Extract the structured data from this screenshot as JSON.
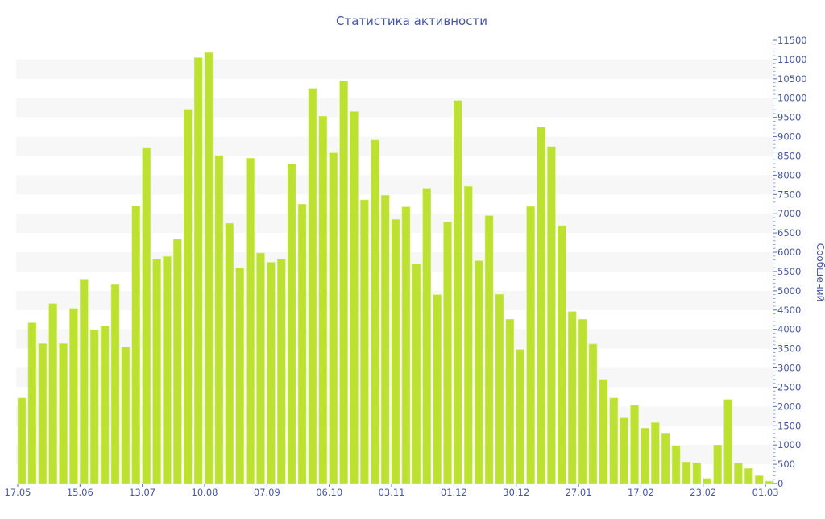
{
  "chart_data": {
    "type": "bar",
    "title": "Статистика активности",
    "xlabel": "",
    "ylabel": "Сообщений",
    "ylim": [
      0,
      11500
    ],
    "y_tick_step": 500,
    "y_axis_side": "right",
    "grid": "alternating horizontal bands",
    "legend": "none",
    "x_tick_labels": [
      "17.05",
      "15.06",
      "13.07",
      "10.08",
      "07.09",
      "06.10",
      "03.11",
      "01.12",
      "30.12",
      "27.01",
      "17.02",
      "23.02",
      "01.03"
    ],
    "x_tick_every": 6,
    "values": [
      2220,
      4170,
      3630,
      4670,
      3630,
      4540,
      5300,
      3980,
      4090,
      5160,
      3540,
      7200,
      8700,
      5820,
      5890,
      6350,
      9710,
      11050,
      11180,
      8510,
      6750,
      5600,
      8440,
      5980,
      5740,
      5820,
      8290,
      7250,
      10250,
      9530,
      8580,
      10450,
      9650,
      7360,
      8910,
      7480,
      6850,
      7180,
      5700,
      7660,
      4900,
      6780,
      9940,
      7710,
      5780,
      6950,
      4910,
      4260,
      3480,
      7190,
      9250,
      8740,
      6690,
      4460,
      4260,
      3620,
      2700,
      2220,
      1700,
      2030,
      1440,
      1580,
      1310,
      980,
      560,
      540,
      130,
      1000,
      2180,
      530,
      390,
      200,
      60
    ]
  },
  "colors": {
    "bar": "#bde130",
    "text": "#4657a0",
    "axis": "#5a6aa8",
    "band": "#f7f7f7"
  }
}
